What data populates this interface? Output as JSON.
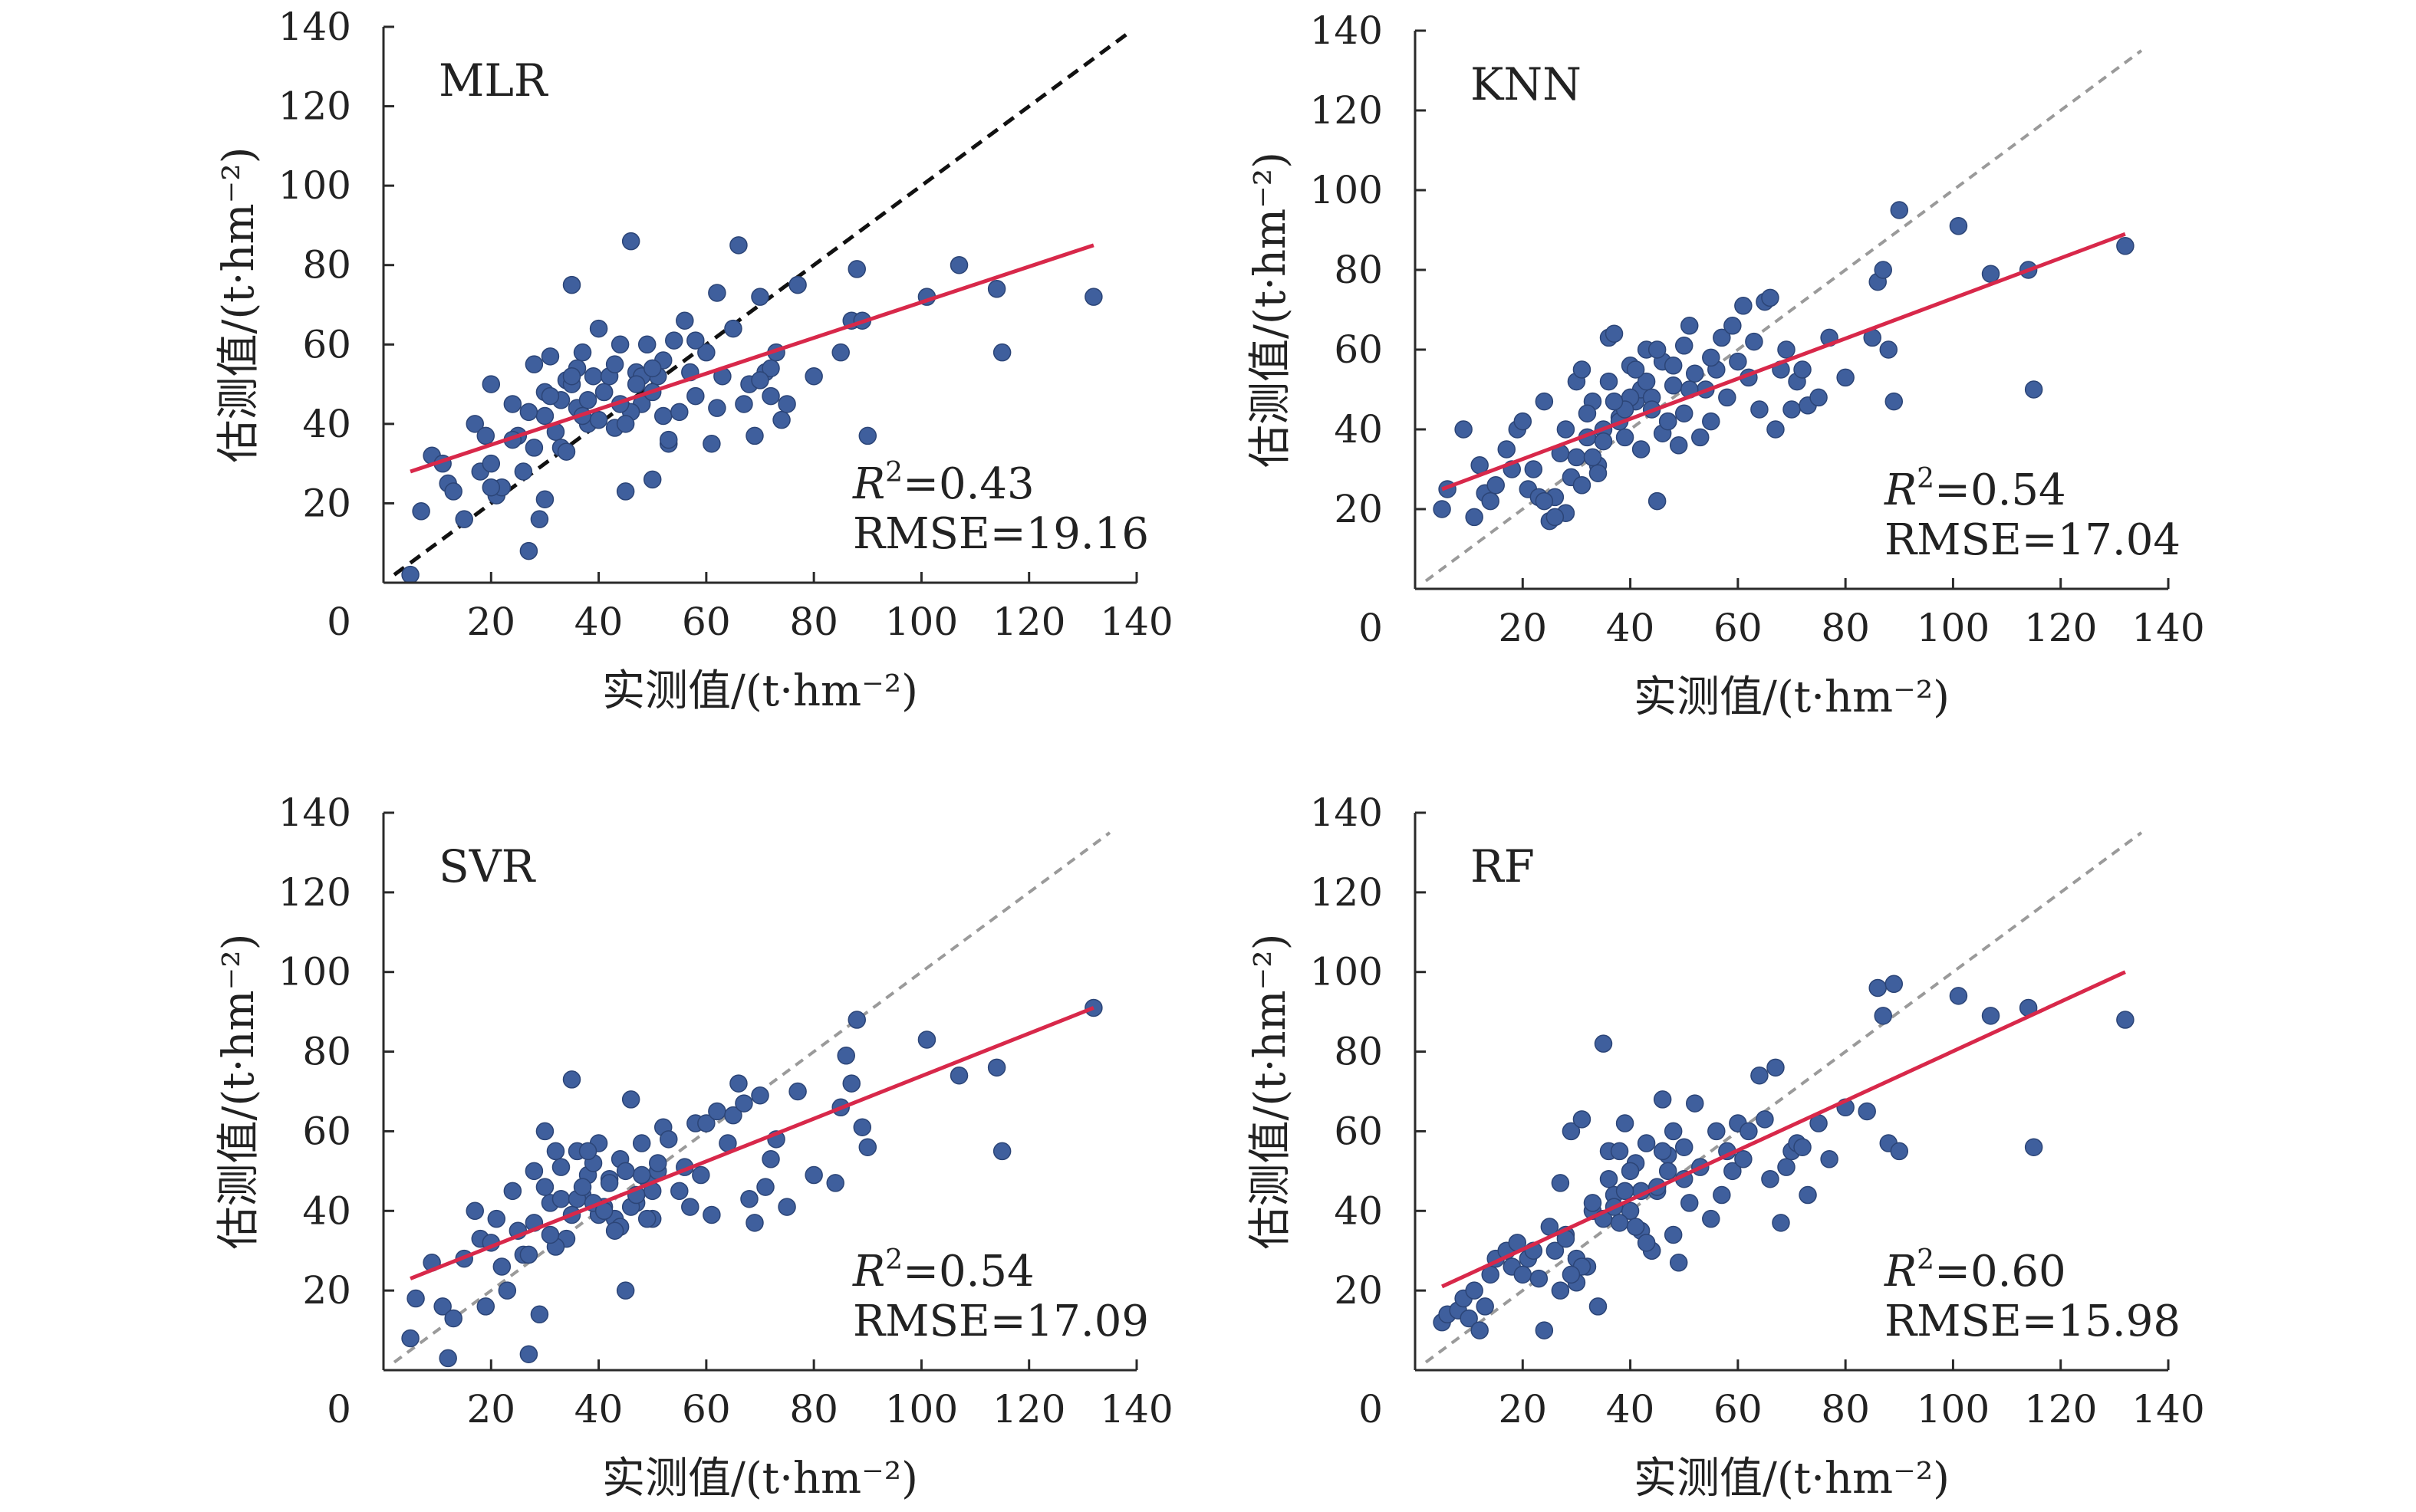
{
  "colors": {
    "point": "#3f5f9d",
    "point_edge": "#2c4577",
    "fit_line": "#d8284a",
    "ref_line_dark": "#111111",
    "ref_line_light": "#9a9a9a",
    "axis": "#2a2a2a"
  },
  "chart_data": [
    {
      "type": "scatter",
      "label": "MLR",
      "xlabel": "实测值/(t·hm⁻²)",
      "ylabel": "估测值/(t·hm⁻²)",
      "xlim": [
        0,
        140
      ],
      "ylim": [
        0,
        140
      ],
      "xticks": [
        "0",
        "20",
        "40",
        "60",
        "80",
        "100",
        "120",
        "140"
      ],
      "yticks": [
        "20",
        "40",
        "60",
        "80",
        "100",
        "120",
        "140"
      ],
      "grid": false,
      "r2_label": "R",
      "r2_sup": "2",
      "r2_value": "=0.43",
      "rmse_text": "RMSE=19.16",
      "fit_line": {
        "x": [
          5,
          132
        ],
        "y": [
          28,
          85
        ]
      },
      "ref_line": {
        "x": [
          2,
          139
        ],
        "y": [
          2,
          139
        ],
        "style": "dark"
      },
      "points": {
        "x": [
          5,
          7,
          9,
          12,
          11,
          13,
          15,
          17,
          18,
          19,
          20,
          20,
          21,
          22,
          24,
          25,
          27,
          28,
          29,
          30,
          30,
          31,
          32,
          33,
          34,
          35,
          36,
          37,
          38,
          39,
          40,
          41,
          42,
          43,
          44,
          45,
          46,
          47,
          48,
          49,
          50,
          51,
          52,
          53,
          54,
          55,
          56,
          57,
          58,
          60,
          61,
          62,
          63,
          65,
          66,
          67,
          68,
          69,
          70,
          71,
          72,
          73,
          74,
          75,
          77,
          80,
          85,
          87,
          88,
          89,
          90,
          101,
          107,
          114,
          115,
          132,
          20,
          24,
          27,
          30,
          33,
          35,
          36,
          38,
          41,
          43,
          46,
          48,
          50,
          26,
          28,
          31,
          34,
          37,
          40,
          44,
          47,
          52,
          58,
          62,
          70,
          72,
          35,
          45,
          50,
          53
        ],
        "y": [
          2,
          18,
          32,
          25,
          30,
          23,
          16,
          40,
          28,
          37,
          50,
          30,
          22,
          24,
          45,
          37,
          8,
          55,
          16,
          21,
          42,
          57,
          38,
          34,
          51,
          75,
          44,
          58,
          46,
          52,
          64,
          48,
          52,
          39,
          60,
          23,
          86,
          53,
          45,
          60,
          26,
          52,
          42,
          35,
          61,
          43,
          66,
          53,
          47,
          58,
          35,
          73,
          52,
          64,
          85,
          45,
          50,
          37,
          72,
          53,
          54,
          58,
          41,
          45,
          75,
          52,
          58,
          66,
          79,
          66,
          37,
          72,
          80,
          74,
          58,
          72,
          24,
          36,
          43,
          48,
          46,
          50,
          54,
          40,
          48,
          55,
          43,
          52,
          48,
          28,
          34,
          47,
          33,
          42,
          41,
          45,
          50,
          56,
          61,
          44,
          51,
          47,
          52,
          40,
          54,
          36
        ]
      }
    },
    {
      "type": "scatter",
      "label": "KNN",
      "xlabel": "实测值/(t·hm⁻²)",
      "ylabel": "估测值/(t·hm⁻²)",
      "xlim": [
        0,
        140
      ],
      "ylim": [
        0,
        140
      ],
      "xticks": [
        "0",
        "20",
        "40",
        "60",
        "80",
        "100",
        "120",
        "140"
      ],
      "yticks": [
        "20",
        "40",
        "60",
        "80",
        "100",
        "120",
        "140"
      ],
      "grid": false,
      "r2_label": "R",
      "r2_sup": "2",
      "r2_value": "=0.54",
      "rmse_text": "RMSE=17.04",
      "fit_line": {
        "x": [
          5,
          132
        ],
        "y": [
          25,
          89
        ]
      },
      "ref_line": {
        "x": [
          2,
          135
        ],
        "y": [
          2,
          135
        ],
        "style": "light"
      },
      "points": {
        "x": [
          5,
          6,
          9,
          11,
          12,
          13,
          14,
          15,
          17,
          18,
          19,
          20,
          21,
          22,
          23,
          24,
          25,
          26,
          27,
          28,
          29,
          30,
          31,
          32,
          33,
          34,
          35,
          36,
          37,
          38,
          39,
          40,
          41,
          42,
          43,
          44,
          45,
          46,
          47,
          48,
          49,
          50,
          51,
          52,
          53,
          54,
          55,
          56,
          57,
          58,
          59,
          60,
          61,
          62,
          63,
          64,
          65,
          66,
          67,
          68,
          69,
          70,
          71,
          72,
          73,
          75,
          77,
          80,
          85,
          86,
          87,
          88,
          89,
          90,
          101,
          107,
          114,
          115,
          132,
          30,
          32,
          34,
          36,
          38,
          40,
          42,
          44,
          46,
          48,
          50,
          28,
          31,
          35,
          39,
          43,
          47,
          51,
          55,
          24,
          26,
          33,
          37,
          41,
          45
        ],
        "y": [
          20,
          25,
          40,
          18,
          31,
          24,
          22,
          26,
          35,
          30,
          40,
          42,
          25,
          30,
          23,
          47,
          17,
          23,
          34,
          40,
          28,
          52,
          55,
          38,
          47,
          31,
          40,
          63,
          64,
          43,
          38,
          56,
          47,
          50,
          60,
          48,
          22,
          57,
          42,
          51,
          36,
          61,
          66,
          54,
          38,
          50,
          42,
          55,
          63,
          48,
          66,
          57,
          71,
          53,
          62,
          45,
          72,
          73,
          40,
          55,
          60,
          45,
          52,
          55,
          46,
          48,
          63,
          53,
          63,
          77,
          80,
          60,
          47,
          95,
          91,
          79,
          80,
          50,
          86,
          33,
          44,
          29,
          52,
          42,
          48,
          35,
          45,
          39,
          56,
          44,
          19,
          26,
          37,
          45,
          52,
          42,
          50,
          58,
          22,
          18,
          33,
          47,
          55,
          60
        ]
      }
    },
    {
      "type": "scatter",
      "label": "SVR",
      "xlabel": "实测值/(t·hm⁻²)",
      "ylabel": "估测值/(t·hm⁻²)",
      "xlim": [
        0,
        140
      ],
      "ylim": [
        0,
        140
      ],
      "xticks": [
        "0",
        "20",
        "40",
        "60",
        "80",
        "100",
        "120",
        "140"
      ],
      "yticks": [
        "20",
        "40",
        "60",
        "80",
        "100",
        "120",
        "140"
      ],
      "grid": false,
      "r2_label": "R",
      "r2_sup": "2",
      "r2_value": "=0.54",
      "rmse_text": "RMSE=17.09",
      "fit_line": {
        "x": [
          5,
          132
        ],
        "y": [
          23,
          91
        ]
      },
      "ref_line": {
        "x": [
          2,
          135
        ],
        "y": [
          2,
          135
        ],
        "style": "light"
      },
      "points": {
        "x": [
          5,
          6,
          9,
          11,
          12,
          13,
          15,
          17,
          18,
          19,
          20,
          21,
          22,
          23,
          24,
          25,
          26,
          27,
          28,
          29,
          30,
          31,
          32,
          33,
          34,
          35,
          36,
          37,
          38,
          39,
          40,
          41,
          42,
          43,
          44,
          45,
          46,
          47,
          48,
          49,
          50,
          51,
          52,
          53,
          55,
          56,
          57,
          58,
          59,
          60,
          61,
          62,
          64,
          65,
          66,
          67,
          68,
          69,
          70,
          71,
          72,
          73,
          75,
          77,
          80,
          84,
          85,
          86,
          87,
          88,
          89,
          90,
          101,
          107,
          114,
          115,
          132,
          28,
          30,
          33,
          36,
          38,
          40,
          42,
          44,
          46,
          48,
          50,
          32,
          35,
          39,
          43,
          47,
          51,
          27,
          31,
          37,
          41,
          45,
          49
        ],
        "y": [
          8,
          18,
          27,
          16,
          3,
          13,
          28,
          40,
          33,
          16,
          32,
          38,
          26,
          20,
          45,
          35,
          29,
          4,
          50,
          14,
          60,
          42,
          55,
          43,
          33,
          73,
          55,
          44,
          49,
          52,
          57,
          41,
          48,
          38,
          36,
          20,
          68,
          42,
          57,
          48,
          38,
          50,
          61,
          58,
          45,
          51,
          41,
          62,
          49,
          62,
          39,
          65,
          57,
          64,
          72,
          67,
          43,
          37,
          69,
          46,
          53,
          58,
          41,
          70,
          49,
          47,
          66,
          79,
          72,
          88,
          61,
          56,
          83,
          74,
          76,
          55,
          91,
          37,
          46,
          51,
          43,
          55,
          39,
          47,
          53,
          41,
          49,
          45,
          31,
          39,
          42,
          35,
          44,
          52,
          29,
          34,
          46,
          40,
          50,
          38
        ]
      }
    },
    {
      "type": "scatter",
      "label": "RF",
      "xlabel": "实测值/(t·hm⁻²)",
      "ylabel": "估测值/(t·hm⁻²)",
      "xlim": [
        0,
        140
      ],
      "ylim": [
        0,
        140
      ],
      "xticks": [
        "0",
        "20",
        "40",
        "60",
        "80",
        "100",
        "120",
        "140"
      ],
      "yticks": [
        "20",
        "40",
        "60",
        "80",
        "100",
        "120",
        "140"
      ],
      "grid": false,
      "r2_label": "R",
      "r2_sup": "2",
      "r2_value": "=0.60",
      "rmse_text": "RMSE=15.98",
      "fit_line": {
        "x": [
          5,
          132
        ],
        "y": [
          21,
          100
        ]
      },
      "ref_line": {
        "x": [
          2,
          135
        ],
        "y": [
          2,
          135
        ],
        "style": "light"
      },
      "points": {
        "x": [
          5,
          6,
          8,
          9,
          10,
          11,
          12,
          13,
          14,
          15,
          17,
          18,
          19,
          20,
          21,
          22,
          23,
          24,
          25,
          26,
          27,
          28,
          29,
          30,
          31,
          32,
          33,
          34,
          35,
          36,
          37,
          38,
          39,
          40,
          41,
          42,
          43,
          44,
          45,
          46,
          47,
          48,
          49,
          50,
          51,
          52,
          53,
          55,
          56,
          57,
          58,
          59,
          60,
          61,
          62,
          64,
          65,
          66,
          67,
          68,
          69,
          70,
          71,
          72,
          73,
          75,
          77,
          80,
          84,
          86,
          87,
          88,
          89,
          90,
          101,
          107,
          114,
          115,
          132,
          28,
          30,
          33,
          36,
          38,
          40,
          42,
          44,
          46,
          48,
          50,
          31,
          35,
          39,
          43,
          47,
          27,
          29,
          37,
          41,
          45
        ],
        "y": [
          12,
          14,
          15,
          18,
          13,
          20,
          10,
          16,
          24,
          28,
          30,
          26,
          32,
          24,
          28,
          30,
          23,
          10,
          36,
          30,
          47,
          34,
          60,
          22,
          63,
          26,
          40,
          16,
          82,
          55,
          44,
          55,
          62,
          40,
          52,
          35,
          57,
          30,
          45,
          68,
          54,
          60,
          27,
          56,
          42,
          67,
          51,
          38,
          60,
          44,
          55,
          50,
          62,
          53,
          60,
          74,
          63,
          48,
          76,
          37,
          51,
          55,
          57,
          56,
          44,
          62,
          53,
          66,
          65,
          96,
          89,
          57,
          97,
          55,
          94,
          89,
          91,
          56,
          88,
          33,
          28,
          42,
          48,
          37,
          50,
          45,
          30,
          55,
          34,
          48,
          26,
          38,
          45,
          32,
          50,
          20,
          24,
          41,
          36,
          46
        ]
      }
    }
  ]
}
